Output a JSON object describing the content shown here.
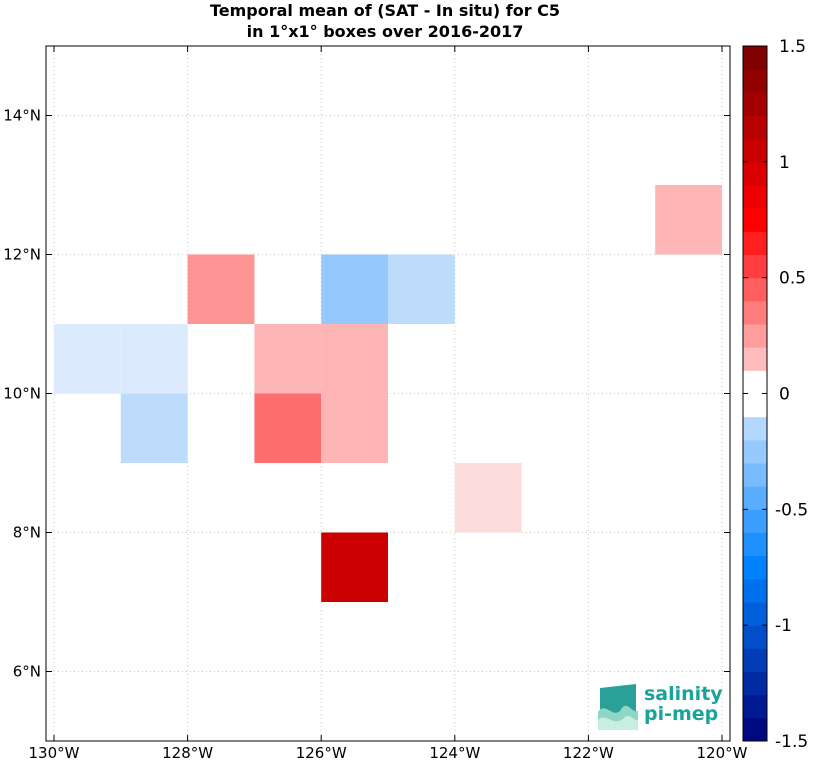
{
  "chart_data": {
    "type": "heatmap",
    "title_lines": [
      "Temporal mean of (SAT - In situ) for C5",
      "in 1°x1° boxes over 2016-2017"
    ],
    "xlim": [
      -130,
      -120
    ],
    "ylim": [
      5,
      15
    ],
    "x_ticks": [
      -130,
      -128,
      -126,
      -124,
      -122,
      -120
    ],
    "x_tick_labels": [
      "130°W",
      "128°W",
      "126°W",
      "124°W",
      "122°W",
      "120°W"
    ],
    "y_ticks": [
      6,
      8,
      10,
      12,
      14
    ],
    "y_tick_labels": [
      "6°N",
      "8°N",
      "10°N",
      "12°N",
      "14°N"
    ],
    "grid": true,
    "colorbar": {
      "range": [
        -1.5,
        1.5
      ],
      "ticks": [
        -1.5,
        -1,
        -0.5,
        0,
        0.5,
        1,
        1.5
      ],
      "tick_labels": [
        "-1.5",
        "-1",
        "-0.5",
        "0",
        "0.5",
        "1",
        "1.5"
      ]
    },
    "boxes": [
      {
        "lon": -130,
        "lat": 10,
        "value": -0.1,
        "color": "#dbebfd"
      },
      {
        "lon": -129,
        "lat": 10,
        "value": -0.1,
        "color": "#dbebfd"
      },
      {
        "lon": -129,
        "lat": 9,
        "value": -0.2,
        "color": "#bddcfc"
      },
      {
        "lon": -128,
        "lat": 11,
        "value": 0.35,
        "color": "#fe9595"
      },
      {
        "lon": -127,
        "lat": 10,
        "value": 0.25,
        "color": "#fdb5b5"
      },
      {
        "lon": -127,
        "lat": 9,
        "value": 0.55,
        "color": "#fe6d6d"
      },
      {
        "lon": -126,
        "lat": 11,
        "value": -0.3,
        "color": "#95c8fd"
      },
      {
        "lon": -126,
        "lat": 10,
        "value": 0.25,
        "color": "#fdb5b5"
      },
      {
        "lon": -126,
        "lat": 9,
        "value": 0.25,
        "color": "#fdb5b5"
      },
      {
        "lon": -126,
        "lat": 7,
        "value": 1.25,
        "color": "#cc0000"
      },
      {
        "lon": -125,
        "lat": 11,
        "value": -0.2,
        "color": "#bddcfc"
      },
      {
        "lon": -124,
        "lat": 8,
        "value": 0.15,
        "color": "#fddcdc"
      },
      {
        "lon": -121,
        "lat": 12,
        "value": 0.25,
        "color": "#fdb5b5"
      }
    ]
  },
  "logo": {
    "line1": "salinity",
    "line2": "pi-mep"
  }
}
